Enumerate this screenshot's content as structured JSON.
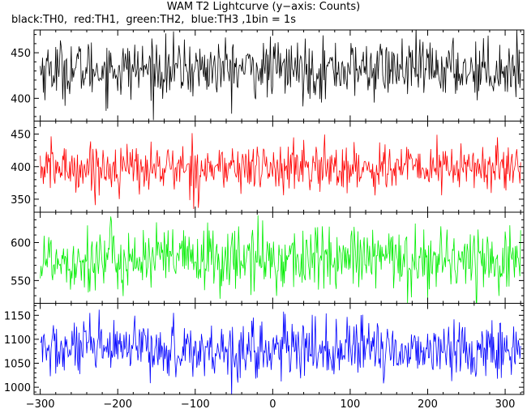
{
  "title": "WAM T2 Lightcurve (y−axis: Counts)",
  "subtitle": "black:TH0,  red:TH1,  green:TH2,  blue:TH3 ,1bin = 1s",
  "chart_data": {
    "type": "line",
    "x_range": [
      -308,
      324
    ],
    "x_ticks": [
      -300,
      -200,
      -100,
      0,
      100,
      200,
      300
    ],
    "x_tick_labels": [
      "−300",
      "−200",
      "−100",
      "0",
      "100",
      "200",
      "300"
    ],
    "panels": [
      {
        "id": "TH0",
        "color": "#000000",
        "ylim": [
          375,
          475
        ],
        "y_ticks": [
          400,
          450
        ],
        "x": [
          -300,
          320
        ],
        "mean": 432,
        "sigma": 16,
        "n_points": 621
      },
      {
        "id": "TH1",
        "color": "#ff0000",
        "ylim": [
          330,
          470
        ],
        "y_ticks": [
          350,
          400,
          450
        ],
        "x": [
          -300,
          320
        ],
        "mean": 398,
        "sigma": 19,
        "n_points": 621
      },
      {
        "id": "TH2",
        "color": "#00ee00",
        "ylim": [
          520,
          640
        ],
        "y_ticks": [
          550,
          600
        ],
        "x": [
          -300,
          320
        ],
        "mean": 578,
        "sigma": 22,
        "n_points": 621
      },
      {
        "id": "TH3",
        "color": "#0000ff",
        "ylim": [
          985,
          1175
        ],
        "y_ticks": [
          1000,
          1050,
          1100,
          1150
        ],
        "x": [
          -300,
          320
        ],
        "mean": 1078,
        "sigma": 30,
        "n_points": 621
      }
    ]
  }
}
